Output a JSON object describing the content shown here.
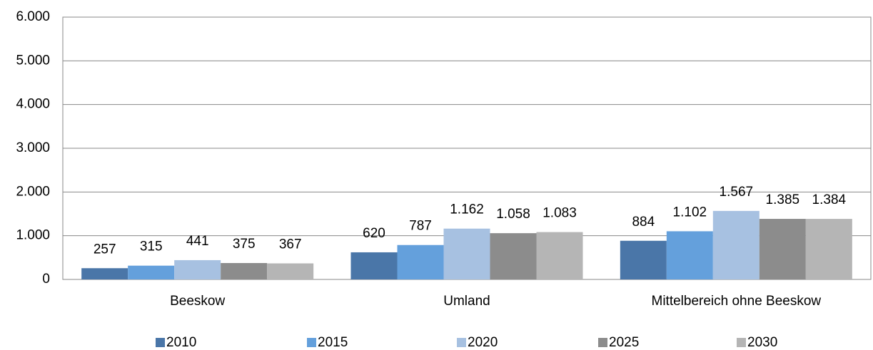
{
  "chart_data": {
    "type": "bar",
    "categories": [
      "Beeskow",
      "Umland",
      "Mittelbereich ohne Beeskow"
    ],
    "series": [
      {
        "name": "2010",
        "color": "#4a76a8",
        "values": [
          257,
          620,
          884
        ],
        "value_labels": [
          "257",
          "620",
          "884"
        ]
      },
      {
        "name": "2015",
        "color": "#64a0dc",
        "values": [
          315,
          787,
          1102
        ],
        "value_labels": [
          "315",
          "787",
          "1.102"
        ]
      },
      {
        "name": "2020",
        "color": "#a7c1e1",
        "values": [
          441,
          1162,
          1567
        ],
        "value_labels": [
          "441",
          "1.162",
          "1.567"
        ]
      },
      {
        "name": "2025",
        "color": "#8c8c8c",
        "values": [
          375,
          1058,
          1385
        ],
        "value_labels": [
          "375",
          "1.058",
          "1.385"
        ]
      },
      {
        "name": "2030",
        "color": "#b5b5b5",
        "values": [
          367,
          1083,
          1384
        ],
        "value_labels": [
          "367",
          "1.083",
          "1.384"
        ]
      }
    ],
    "ylim": [
      0,
      6000
    ],
    "yticks": [
      0,
      {
        "value": 1000,
        "label": "1.000"
      },
      {
        "value": 2000,
        "label": "2.000"
      },
      {
        "value": 3000,
        "label": "3.000"
      },
      {
        "value": 4000,
        "label": "4.000"
      },
      {
        "value": 5000,
        "label": "5.000"
      },
      {
        "value": 6000,
        "label": "6.000"
      }
    ],
    "grid": true,
    "legend": "bottom"
  }
}
